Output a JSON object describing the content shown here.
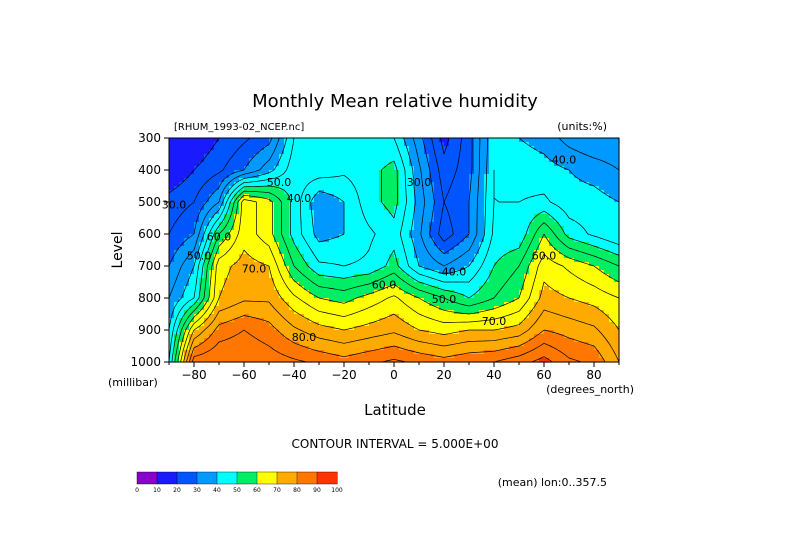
{
  "chart_data": {
    "type": "heatmap",
    "title": "Monthly Mean relative humidity",
    "dataset": "[RHUM_1993-02_NCEP.nc]",
    "units_label": "(units:%)",
    "xlabel": "Latitude",
    "x_units": "(degrees_north)",
    "ylabel": "Level",
    "y_units": "(millibar)",
    "xlim": [
      -90,
      90
    ],
    "ylim": [
      1000,
      300
    ],
    "x_ticks": [
      -80,
      -60,
      -40,
      -20,
      0,
      20,
      40,
      60,
      80
    ],
    "y_ticks": [
      300,
      400,
      500,
      600,
      700,
      800,
      900,
      1000
    ],
    "contour_interval": "CONTOUR INTERVAL = 5.000E+00",
    "averaging": "(mean) lon:0..357.5",
    "contour_labels": [
      {
        "text": "40.0",
        "lat": 68,
        "level": 380
      },
      {
        "text": "50.0",
        "lat": -46,
        "level": 450
      },
      {
        "text": "40.0",
        "lat": -38,
        "level": 500
      },
      {
        "text": "30.0",
        "lat": 10,
        "level": 450
      },
      {
        "text": "30.0",
        "lat": -88,
        "level": 520
      },
      {
        "text": "60.0",
        "lat": -70,
        "level": 620
      },
      {
        "text": "50.0",
        "lat": -78,
        "level": 680
      },
      {
        "text": "70.0",
        "lat": -56,
        "level": 720
      },
      {
        "text": "60.0",
        "lat": 60,
        "level": 680
      },
      {
        "text": "40.0",
        "lat": 24,
        "level": 730
      },
      {
        "text": "60.0",
        "lat": -4,
        "level": 770
      },
      {
        "text": "50.0",
        "lat": 20,
        "level": 815
      },
      {
        "text": "70.0",
        "lat": 40,
        "level": 885
      },
      {
        "text": "80.0",
        "lat": -36,
        "level": 935
      }
    ],
    "colorbar": {
      "bounds": [
        "0",
        "10",
        "20",
        "30",
        "40",
        "50",
        "60",
        "70",
        "80",
        "90",
        "100"
      ],
      "colors": [
        "#8800cc",
        "#1a1aff",
        "#0055ff",
        "#0099ff",
        "#00ffff",
        "#00ee66",
        "#ffff00",
        "#ffaa00",
        "#ff7700",
        "#ff3300"
      ]
    },
    "field_samples": {
      "lat": [
        -90,
        -80,
        -70,
        -60,
        -50,
        -40,
        -30,
        -20,
        -10,
        0,
        10,
        20,
        30,
        40,
        50,
        60,
        70,
        80,
        90
      ],
      "levels": [
        300,
        400,
        500,
        600,
        700,
        800,
        900,
        1000
      ],
      "values": [
        [
          15,
          15,
          20,
          24,
          28,
          45,
          50,
          48,
          45,
          45,
          32,
          18,
          28,
          44,
          40,
          38,
          33,
          30,
          30
        ],
        [
          15,
          20,
          24,
          30,
          38,
          48,
          48,
          46,
          48,
          52,
          36,
          22,
          28,
          45,
          43,
          42,
          40,
          38,
          35
        ],
        [
          22,
          25,
          35,
          68,
          62,
          48,
          36,
          40,
          48,
          52,
          38,
          25,
          30,
          45,
          45,
          46,
          42,
          42,
          40
        ],
        [
          25,
          30,
          55,
          68,
          62,
          48,
          38,
          40,
          44,
          48,
          36,
          22,
          30,
          46,
          46,
          60,
          48,
          44,
          40
        ],
        [
          30,
          40,
          68,
          72,
          70,
          55,
          46,
          45,
          46,
          52,
          40,
          35,
          40,
          50,
          55,
          68,
          64,
          60,
          55
        ],
        [
          35,
          45,
          70,
          74,
          74,
          66,
          60,
          58,
          62,
          66,
          60,
          55,
          50,
          55,
          60,
          72,
          70,
          68,
          65
        ],
        [
          40,
          70,
          82,
          85,
          82,
          76,
          72,
          70,
          72,
          74,
          70,
          68,
          70,
          70,
          72,
          80,
          78,
          76,
          70
        ],
        [
          45,
          88,
          90,
          90,
          88,
          86,
          84,
          82,
          84,
          86,
          84,
          82,
          84,
          85,
          88,
          92,
          86,
          84,
          75
        ]
      ]
    }
  }
}
